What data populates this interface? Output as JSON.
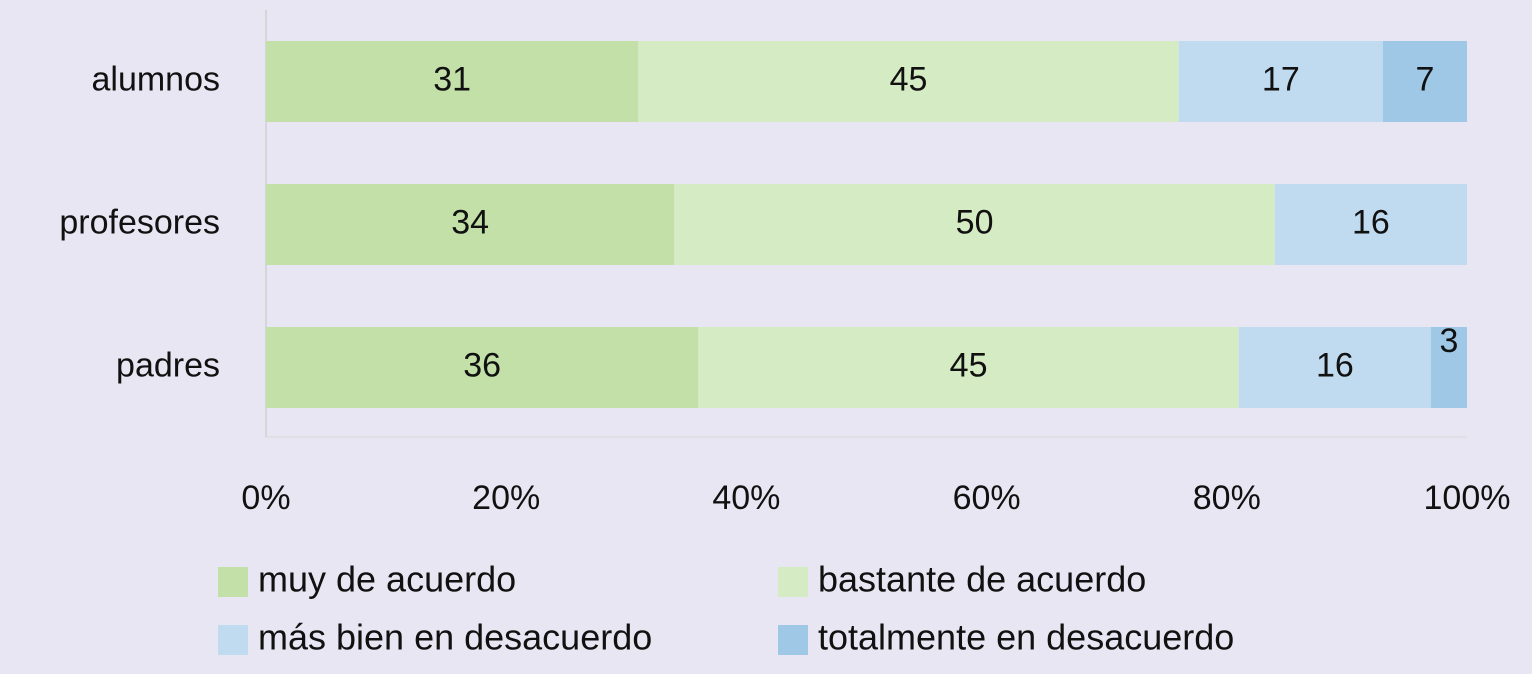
{
  "chart_data": {
    "type": "stacked-barh",
    "categories": [
      "alumnos",
      "profesores",
      "padres"
    ],
    "series": [
      {
        "name": "muy de acuerdo",
        "color": "#c2e0a8",
        "values": [
          31,
          34,
          36
        ]
      },
      {
        "name": "bastante de acuerdo",
        "color": "#d5ebc3",
        "values": [
          45,
          50,
          45
        ]
      },
      {
        "name": "más bien en desacuerdo",
        "color": "#c0dbef",
        "values": [
          17,
          16,
          16
        ]
      },
      {
        "name": "totalmente en desacuerdo",
        "color": "#9fc8e6",
        "values": [
          7,
          null,
          3
        ]
      }
    ],
    "xlim": [
      0,
      100
    ],
    "xticks": [
      {
        "value": 0,
        "label": "0%"
      },
      {
        "value": 20,
        "label": "20%"
      },
      {
        "value": 40,
        "label": "40%"
      },
      {
        "value": 60,
        "label": "60%"
      },
      {
        "value": 80,
        "label": "80%"
      },
      {
        "value": 100,
        "label": "100%"
      }
    ]
  }
}
